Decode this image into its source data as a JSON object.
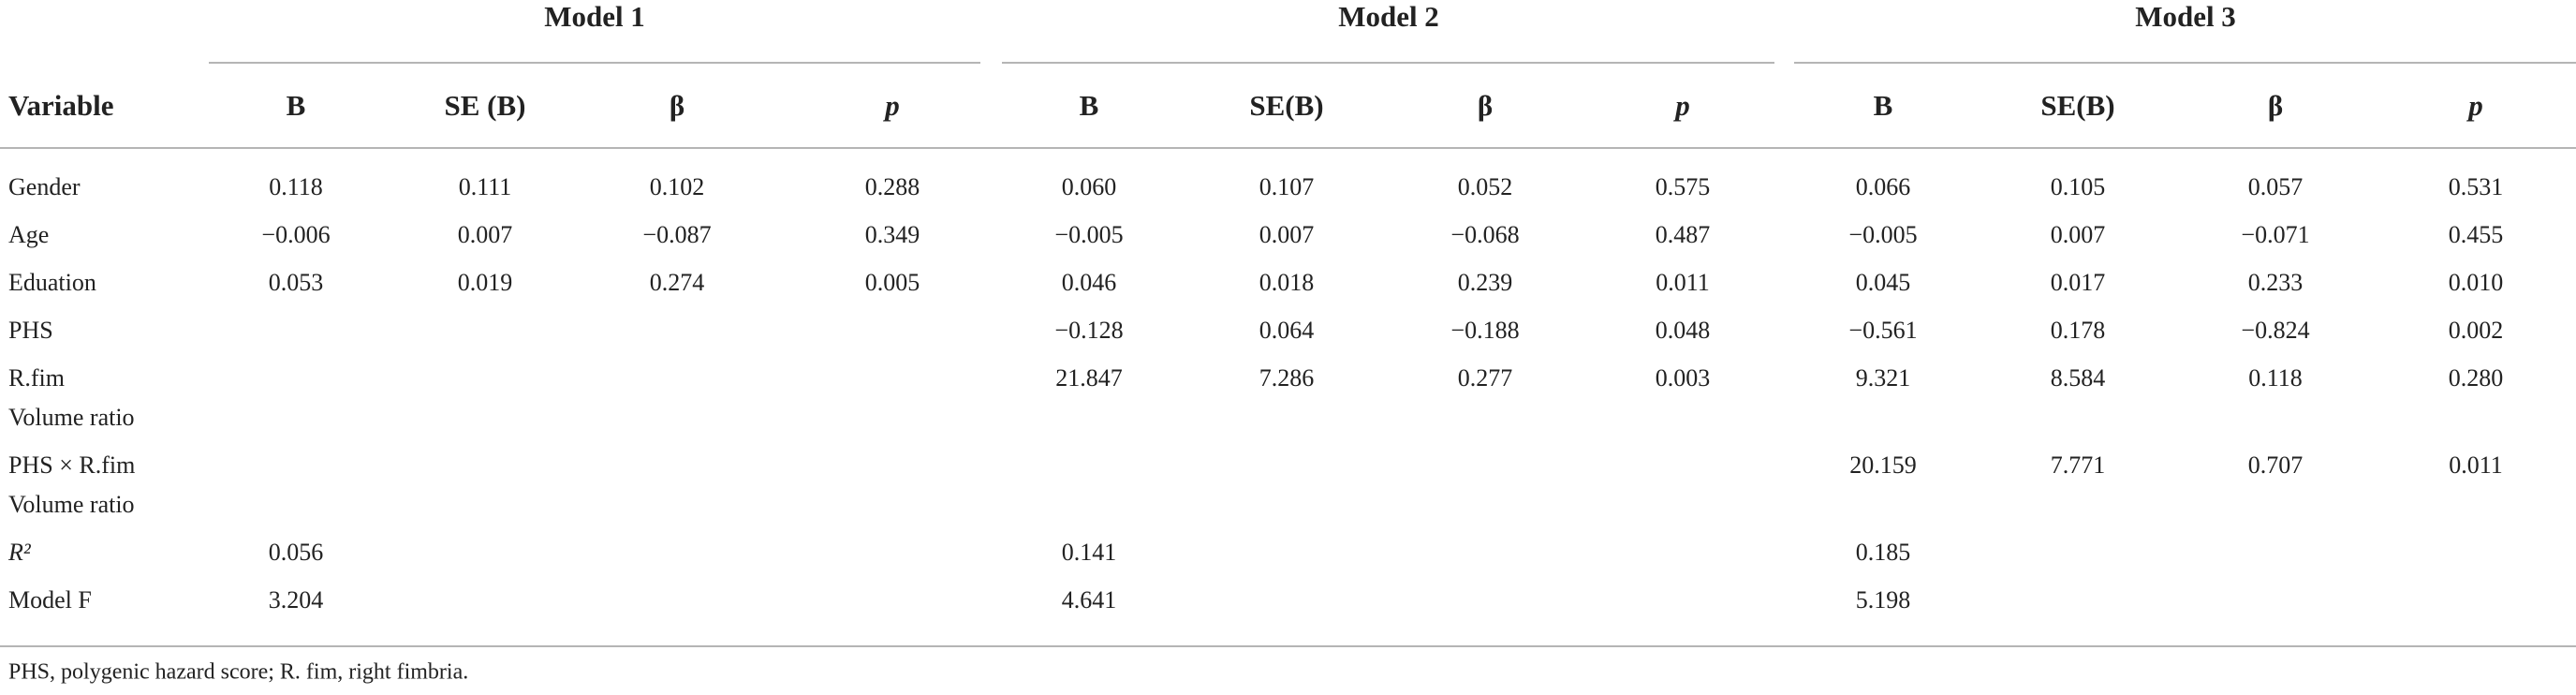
{
  "table": {
    "column_groups": [
      "Model 1",
      "Model 2",
      "Model 3"
    ],
    "row_header": "Variable",
    "columns": [
      "B",
      "SE (B)",
      "β",
      "p",
      "B",
      "SE(B)",
      "β",
      "p",
      "B",
      "SE(B)",
      "β",
      "p"
    ],
    "rows": [
      {
        "variable": [
          "Gender"
        ],
        "cells": [
          "0.118",
          "0.111",
          "0.102",
          "0.288",
          "0.060",
          "0.107",
          "0.052",
          "0.575",
          "0.066",
          "0.105",
          "0.057",
          "0.531"
        ]
      },
      {
        "variable": [
          "Age"
        ],
        "cells": [
          "−0.006",
          "0.007",
          "−0.087",
          "0.349",
          "−0.005",
          "0.007",
          "−0.068",
          "0.487",
          "−0.005",
          "0.007",
          "−0.071",
          "0.455"
        ]
      },
      {
        "variable": [
          "Eduation"
        ],
        "cells": [
          "0.053",
          "0.019",
          "0.274",
          "0.005",
          "0.046",
          "0.018",
          "0.239",
          "0.011",
          "0.045",
          "0.017",
          "0.233",
          "0.010"
        ]
      },
      {
        "variable": [
          "PHS"
        ],
        "cells": [
          null,
          null,
          null,
          null,
          "−0.128",
          "0.064",
          "−0.188",
          "0.048",
          "−0.561",
          "0.178",
          "−0.824",
          "0.002"
        ]
      },
      {
        "variable": [
          "R.fim",
          "Volume ratio"
        ],
        "cells": [
          null,
          null,
          null,
          null,
          "21.847",
          "7.286",
          "0.277",
          "0.003",
          "9.321",
          "8.584",
          "0.118",
          "0.280"
        ]
      },
      {
        "variable": [
          "PHS × R.fim",
          "Volume ratio"
        ],
        "cells": [
          null,
          null,
          null,
          null,
          null,
          null,
          null,
          null,
          "20.159",
          "7.771",
          "0.707",
          "0.011"
        ]
      },
      {
        "variable": [
          "R²"
        ],
        "cells": [
          "0.056",
          null,
          null,
          null,
          "0.141",
          null,
          null,
          null,
          "0.185",
          null,
          null,
          null
        ]
      },
      {
        "variable": [
          "Model F"
        ],
        "cells": [
          "3.204",
          null,
          null,
          null,
          "4.641",
          null,
          null,
          null,
          "5.198",
          null,
          null,
          null
        ]
      }
    ],
    "footnote": "PHS, polygenic hazard score; R. fim, right fimbria."
  }
}
